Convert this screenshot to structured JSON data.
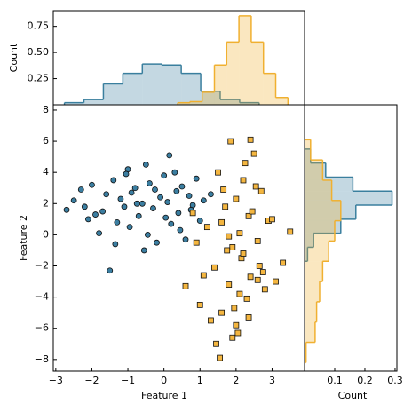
{
  "chart_data": [
    {
      "type": "scatter",
      "xlabel": "Feature 1",
      "ylabel": "Feature 2",
      "xlim": [
        -3.07,
        3.9
      ],
      "ylim": [
        -8.75,
        8.34
      ],
      "xticks": [
        {
          "value": -3,
          "label": "−3"
        },
        {
          "value": -2,
          "label": "−2"
        },
        {
          "value": -1,
          "label": "−1"
        },
        0,
        1,
        2,
        3
      ],
      "yticks": [
        {
          "value": -8,
          "label": "−8"
        },
        {
          "value": -6,
          "label": "−6"
        },
        {
          "value": -4,
          "label": "−4"
        },
        {
          "value": -2,
          "label": "−2"
        },
        0,
        2,
        4,
        6,
        8
      ],
      "series": [
        {
          "color": "#3b7ea1",
          "marker": "circle",
          "x": [
            -2.7,
            -2.5,
            -2.3,
            -2.1,
            -2.0,
            -1.8,
            -1.7,
            -1.6,
            -1.5,
            -1.4,
            -1.3,
            -1.2,
            -1.1,
            -1.0,
            -0.95,
            -0.9,
            -0.8,
            -0.7,
            -0.6,
            -0.5,
            -0.45,
            -0.4,
            -0.3,
            -0.2,
            -0.1,
            0,
            0.05,
            0.1,
            0.2,
            0.3,
            0.35,
            0.4,
            0.5,
            0.6,
            0.7,
            0.8,
            0.9,
            1.0,
            1.1,
            -1.9,
            -1.05,
            -0.55,
            0.15,
            0.45,
            -0.25,
            -1.35,
            0.75,
            -0.75,
            -2.2,
            1.3
          ],
          "values": [
            1.6,
            2.2,
            2.9,
            1.0,
            3.2,
            0.1,
            1.5,
            2.6,
            -2.3,
            3.5,
            0.8,
            2.3,
            1.8,
            4.2,
            0.5,
            2.7,
            3.0,
            1.2,
            2.0,
            4.5,
            0.0,
            3.3,
            1.7,
            -0.5,
            2.4,
            3.8,
            1.1,
            2.1,
            0.7,
            4.0,
            2.8,
            1.4,
            3.1,
            -0.3,
            2.5,
            1.9,
            3.6,
            0.9,
            2.2,
            1.3,
            3.9,
            -1.0,
            5.1,
            0.3,
            2.9,
            -0.6,
            1.6,
            2.0,
            1.8,
            2.6
          ]
        },
        {
          "color": "#f4b640",
          "marker": "square",
          "x": [
            1.2,
            1.4,
            1.5,
            1.6,
            1.7,
            1.8,
            1.85,
            1.9,
            2.0,
            2.05,
            2.1,
            2.15,
            2.2,
            2.3,
            2.35,
            2.4,
            2.5,
            2.6,
            2.7,
            2.8,
            1.3,
            1.55,
            1.75,
            1.95,
            2.25,
            2.45,
            2.65,
            2.9,
            3.1,
            3.3,
            0.6,
            0.9,
            1.0,
            1.45,
            1.65,
            2.0,
            2.2,
            2.55,
            2.75,
            3.0,
            1.1,
            1.8,
            2.35,
            1.6,
            2.1,
            2.4,
            3.5,
            0.8,
            1.9,
            2.6
          ],
          "values": [
            0.5,
            -2.1,
            4.0,
            -5.0,
            1.8,
            -3.2,
            6.0,
            -0.8,
            2.3,
            -6.3,
            0.1,
            -1.5,
            3.5,
            -4.1,
            1.2,
            -2.7,
            5.2,
            -0.4,
            2.8,
            -3.5,
            -5.5,
            -7.9,
            -1.0,
            -4.7,
            4.6,
            1.5,
            -2.0,
            0.9,
            -3.0,
            -1.8,
            -3.3,
            -0.5,
            -4.5,
            -7.0,
            2.9,
            -5.8,
            -1.2,
            3.1,
            -2.4,
            1.0,
            -2.6,
            -0.1,
            -5.3,
            0.8,
            -3.8,
            6.1,
            0.2,
            1.4,
            -6.6,
            -2.9
          ]
        }
      ]
    },
    {
      "type": "histogram",
      "orientation": "vertical",
      "ylabel": "Count",
      "ylim": [
        0,
        0.9
      ],
      "yticks": [
        0.25,
        {
          "value": 0.5,
          "label": "0.50"
        },
        0.75
      ],
      "series": [
        {
          "color": "#3a7f9e",
          "bins": [
            -2.76,
            -2.22,
            -1.68,
            -1.14,
            -0.6,
            -0.06,
            0.48,
            1.02,
            1.56,
            2.1,
            2.64
          ],
          "values": [
            0.02,
            0.05,
            0.2,
            0.3,
            0.39,
            0.38,
            0.3,
            0.13,
            0.05,
            0.02
          ]
        },
        {
          "color": "#f0b030",
          "bins": [
            0.38,
            0.72,
            1.06,
            1.4,
            1.74,
            2.08,
            2.42,
            2.76,
            3.1,
            3.44
          ],
          "values": [
            0.02,
            0.03,
            0.12,
            0.38,
            0.6,
            0.85,
            0.6,
            0.3,
            0.07
          ]
        }
      ]
    },
    {
      "type": "histogram",
      "orientation": "horizontal",
      "xlabel": "Count",
      "xlim": [
        0,
        0.306
      ],
      "xticks": [
        0.1,
        0.2,
        0.3
      ],
      "series": [
        {
          "color": "#3a7f9e",
          "bins": [
            -1.7,
            -0.8,
            0.1,
            1.0,
            1.9,
            2.8,
            3.7,
            4.6,
            5.5
          ],
          "values": [
            0.01,
            0.03,
            0.12,
            0.17,
            0.29,
            0.16,
            0.07,
            0.02
          ]
        },
        {
          "color": "#f0b030",
          "bins": [
            -8.2,
            -6.9,
            -5.6,
            -4.3,
            -3.0,
            -1.7,
            -0.4,
            0.9,
            2.2,
            3.5,
            4.8,
            6.1
          ],
          "values": [
            0.005,
            0.035,
            0.04,
            0.05,
            0.06,
            0.08,
            0.1,
            0.12,
            0.09,
            0.06,
            0.02
          ]
        }
      ]
    }
  ]
}
